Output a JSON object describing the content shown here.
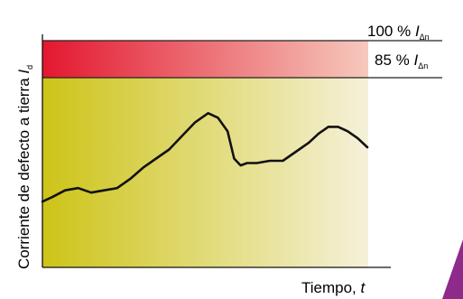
{
  "chart_data": {
    "type": "line",
    "ylabel_text": "Corriente de defecto a tierra ",
    "ylabel_symbol": "I",
    "ylabel_subscript": "d",
    "xlabel_text": "Tiempo, ",
    "xlabel_symbol": "t",
    "thresholds": [
      {
        "prefix": "100 % ",
        "symbol": "I",
        "subscript": "Δn",
        "value_percent": 100
      },
      {
        "prefix": "85 % ",
        "symbol": "I",
        "subscript": "Δn",
        "value_percent": 85
      }
    ],
    "xlim": [
      0,
      100
    ],
    "ylim": [
      0,
      100
    ],
    "grid": false,
    "series": [
      {
        "x": [
          0,
          3,
          7,
          11,
          15,
          19,
          23,
          27,
          31,
          35,
          39,
          43,
          47,
          51,
          54,
          57,
          59,
          61,
          63,
          66,
          70,
          74,
          78,
          82,
          85,
          88,
          91,
          94,
          97,
          100
        ],
        "y": [
          29,
          31,
          34,
          35,
          33,
          34,
          35,
          39,
          44,
          48,
          52,
          58,
          64,
          68,
          66,
          60,
          48,
          45,
          46,
          46,
          47,
          47,
          51,
          55,
          59,
          62,
          62,
          60,
          57,
          53
        ]
      }
    ]
  },
  "colors": {
    "band_strong": "#e3172f",
    "band_light": "#f6c9bd",
    "plot_left": "#cdc418",
    "plot_right": "#f5f1d9",
    "line": "#111111",
    "accent": "#8e2a8a"
  }
}
